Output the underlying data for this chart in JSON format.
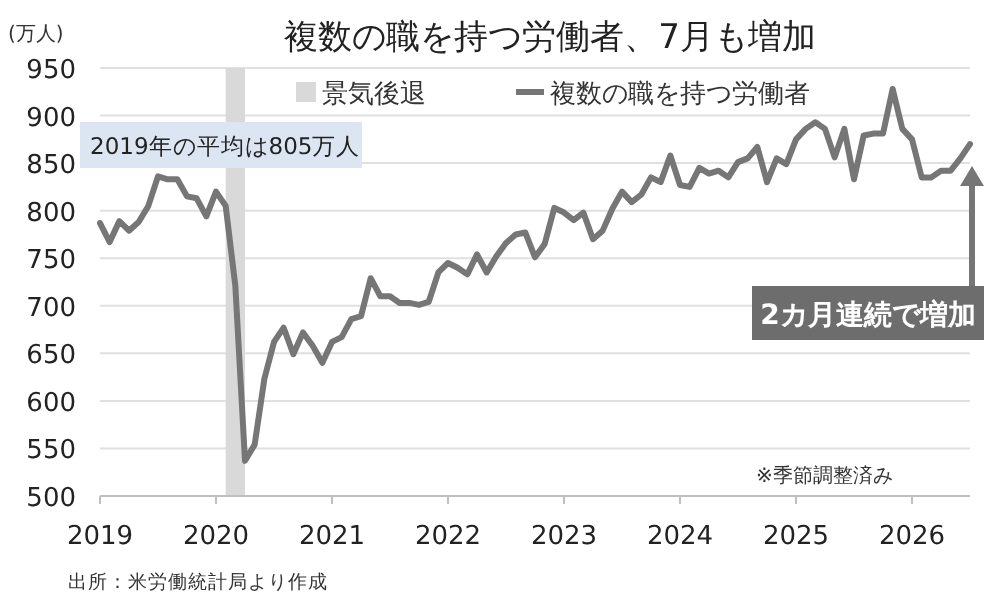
{
  "chart_data": {
    "type": "line",
    "title": "複数の職を持つ労働者、7月も増加",
    "ylabel": "(万人)",
    "annotations": [
      "2019年の平均は805万人",
      "2カ月連続で増加",
      "※季節調整済み",
      "出所：米労働統計局より作成"
    ],
    "x": [
      "2019-01",
      "2019-02",
      "2019-03",
      "2019-04",
      "2019-05",
      "2019-06",
      "2019-07",
      "2019-08",
      "2019-09",
      "2019-10",
      "2019-11",
      "2019-12",
      "2020-01",
      "2020-02",
      "2020-03",
      "2020-04",
      "2020-05",
      "2020-06",
      "2020-07",
      "2020-08",
      "2020-09",
      "2020-10",
      "2020-11",
      "2020-12",
      "2021-01",
      "2021-02",
      "2021-03",
      "2021-04",
      "2021-05",
      "2021-06",
      "2021-07",
      "2021-08",
      "2021-09",
      "2021-10",
      "2021-11",
      "2021-12",
      "2022-01",
      "2022-02",
      "2022-03",
      "2022-04",
      "2022-05",
      "2022-06",
      "2022-07",
      "2022-08",
      "2022-09",
      "2022-10",
      "2022-11",
      "2022-12",
      "2023-01",
      "2023-02",
      "2023-03",
      "2023-04",
      "2023-05",
      "2023-06",
      "2023-07",
      "2023-08",
      "2023-09",
      "2023-10",
      "2023-11",
      "2023-12",
      "2024-01",
      "2024-02",
      "2024-03",
      "2024-04",
      "2024-05",
      "2024-06",
      "2024-07",
      "2024-08",
      "2024-09",
      "2024-10",
      "2024-11",
      "2024-12",
      "2025-01",
      "2025-02",
      "2025-03",
      "2025-04",
      "2025-05",
      "2025-06",
      "2025-07",
      "2025-08",
      "2025-09",
      "2025-10",
      "2025-11",
      "2025-12",
      "2026-01",
      "2026-02",
      "2026-03",
      "2026-04",
      "2026-05",
      "2026-06",
      "2026-07"
    ],
    "series": [
      {
        "name": "複数の職を持つ労働者",
        "color": "#767676",
        "values": [
          787,
          767,
          789,
          779,
          788,
          805,
          836,
          833,
          833,
          815,
          813,
          794,
          820,
          805,
          721,
          537,
          554,
          623,
          662,
          677,
          649,
          672,
          658,
          640,
          662,
          667,
          686,
          689,
          729,
          710,
          710,
          703,
          703,
          701,
          704,
          735,
          745,
          740,
          733,
          754,
          735,
          752,
          766,
          775,
          777,
          751,
          765,
          803,
          798,
          790,
          798,
          770,
          779,
          802,
          820,
          809,
          817,
          835,
          830,
          858,
          827,
          825,
          845,
          839,
          842,
          835,
          851,
          855,
          867,
          830,
          855,
          849,
          875,
          886,
          893,
          886,
          856,
          886,
          833,
          879,
          881,
          881,
          928,
          886,
          875,
          835,
          835,
          842,
          842,
          855,
          870
        ]
      }
    ],
    "bands": [
      {
        "axis": "x",
        "from": "2020-02",
        "to": "2020-04",
        "label": "景気後退",
        "color": "#d9d9d9"
      }
    ],
    "xlim": [
      "2019-01",
      "2026-07"
    ],
    "ylim": [
      500,
      950
    ],
    "xticks": [
      "2019",
      "2020",
      "2021",
      "2022",
      "2023",
      "2024",
      "2025",
      "2026"
    ],
    "yticks": [
      500,
      550,
      600,
      650,
      700,
      750,
      800,
      850,
      900,
      950
    ],
    "grid": "y",
    "legend": "top"
  }
}
